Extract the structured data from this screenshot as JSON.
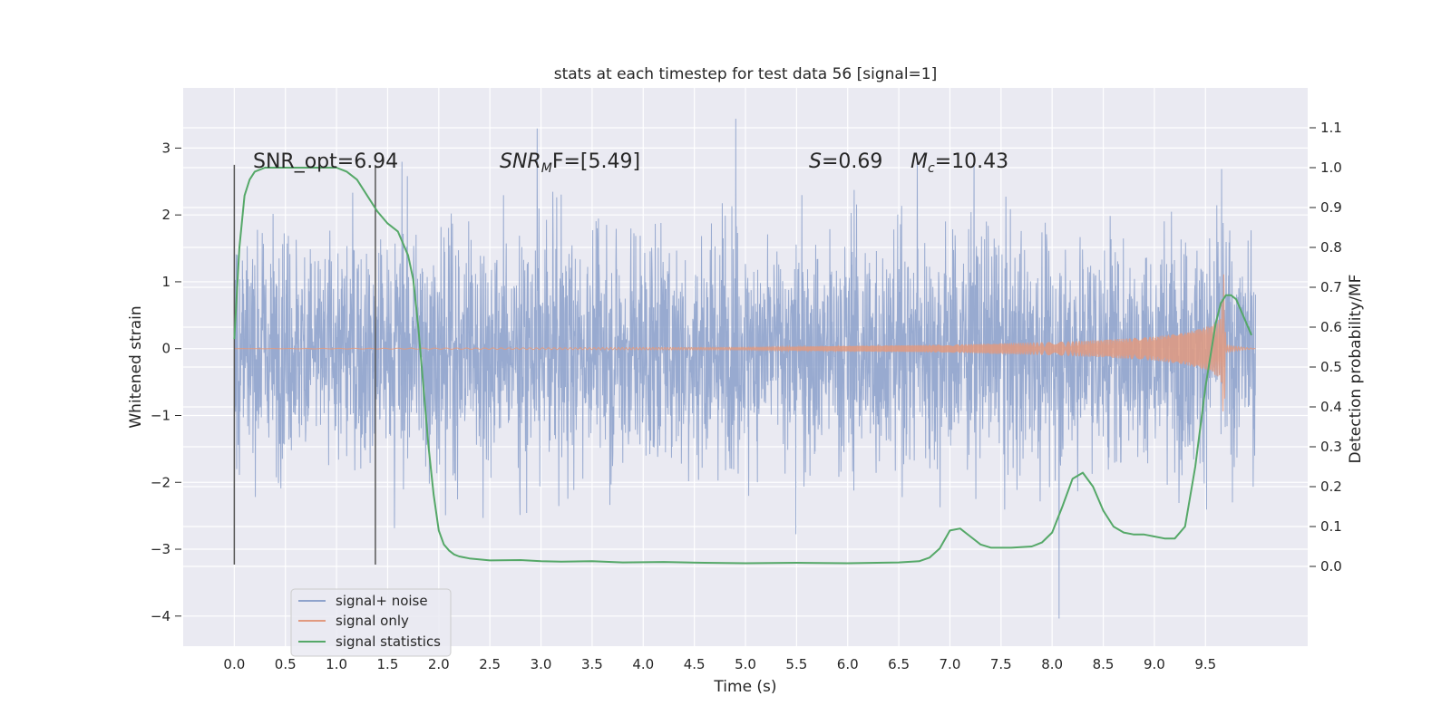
{
  "chart_data": {
    "type": "line",
    "title": "stats at each timestep for test data 56 [signal=1]",
    "xlabel": "Time (s)",
    "ylabel": "Whitened strain",
    "ylabel_right": "Detection probability/MF",
    "xlim": [
      -0.5,
      10.5
    ],
    "ylim": [
      -4.45,
      3.9
    ],
    "ylim_right": [
      -0.2,
      1.2
    ],
    "x_ticks": [
      "0.0",
      "0.5",
      "1.0",
      "1.5",
      "2.0",
      "2.5",
      "3.0",
      "3.5",
      "4.0",
      "4.5",
      "5.0",
      "5.5",
      "6.0",
      "6.5",
      "7.0",
      "7.5",
      "8.0",
      "8.5",
      "9.0",
      "9.5"
    ],
    "y_ticks": [
      "3",
      "2",
      "1",
      "0",
      "−1",
      "−2",
      "−3",
      "−4"
    ],
    "y_right_ticks": [
      "1.1",
      "1.0",
      "0.9",
      "0.8",
      "0.7",
      "0.6",
      "0.5",
      "0.4",
      "0.3",
      "0.2",
      "0.1",
      "0.0"
    ],
    "grid": true,
    "legend_position": "lower-left",
    "annotations": {
      "snr_opt": "SNR_opt=6.94",
      "snr_mf_base": "SNR",
      "snr_mf_sub": "M",
      "snr_mf_rest": "F=[5.49]",
      "s_label": "S",
      "s_value": "=0.69",
      "mc_base": "M",
      "mc_sub": "c",
      "mc_value": "=10.43"
    },
    "vlines_x": [
      0.0,
      1.38
    ],
    "series": [
      {
        "name": "signal+ noise",
        "color": "#8fa3cc",
        "x_range": [
          0.0,
          9.99
        ],
        "envelope_typical": 1.9,
        "envelope_peak": 3.55
      },
      {
        "name": "signal only",
        "color": "#e19a80",
        "x_chirp": [
          0.0,
          5.0,
          6.0,
          7.0,
          8.0,
          8.5,
          9.0,
          9.3,
          9.5,
          9.65,
          9.68,
          9.7,
          9.99
        ],
        "y_amplitude": [
          0.0,
          0.02,
          0.04,
          0.06,
          0.1,
          0.13,
          0.18,
          0.24,
          0.32,
          0.45,
          1.2,
          0.05,
          0.0
        ]
      },
      {
        "name": "signal statistics",
        "color": "#55a868",
        "axis": "right",
        "x": [
          0.0,
          0.05,
          0.1,
          0.15,
          0.2,
          0.3,
          0.5,
          0.8,
          1.0,
          1.1,
          1.2,
          1.3,
          1.4,
          1.5,
          1.6,
          1.7,
          1.75,
          1.8,
          1.85,
          1.9,
          1.95,
          2.0,
          2.05,
          2.1,
          2.15,
          2.2,
          2.3,
          2.5,
          2.8,
          3.0,
          3.2,
          3.5,
          3.8,
          4.2,
          4.6,
          5.0,
          5.5,
          6.0,
          6.5,
          6.7,
          6.8,
          6.9,
          7.0,
          7.1,
          7.2,
          7.3,
          7.4,
          7.6,
          7.8,
          7.9,
          8.0,
          8.1,
          8.2,
          8.3,
          8.4,
          8.5,
          8.6,
          8.7,
          8.8,
          8.9,
          9.0,
          9.1,
          9.2,
          9.3,
          9.4,
          9.5,
          9.6,
          9.65,
          9.7,
          9.75,
          9.8,
          9.85,
          9.9,
          9.95
        ],
        "y": [
          0.57,
          0.8,
          0.93,
          0.97,
          0.99,
          1.0,
          1.0,
          1.0,
          1.0,
          0.99,
          0.97,
          0.93,
          0.89,
          0.86,
          0.84,
          0.78,
          0.72,
          0.6,
          0.45,
          0.3,
          0.18,
          0.09,
          0.055,
          0.04,
          0.03,
          0.025,
          0.02,
          0.015,
          0.016,
          0.013,
          0.012,
          0.013,
          0.01,
          0.011,
          0.009,
          0.008,
          0.009,
          0.008,
          0.01,
          0.013,
          0.022,
          0.045,
          0.09,
          0.095,
          0.075,
          0.055,
          0.047,
          0.047,
          0.05,
          0.06,
          0.085,
          0.15,
          0.22,
          0.235,
          0.2,
          0.14,
          0.1,
          0.085,
          0.08,
          0.08,
          0.075,
          0.07,
          0.07,
          0.1,
          0.25,
          0.45,
          0.61,
          0.66,
          0.68,
          0.68,
          0.67,
          0.64,
          0.61,
          0.58
        ]
      }
    ]
  }
}
